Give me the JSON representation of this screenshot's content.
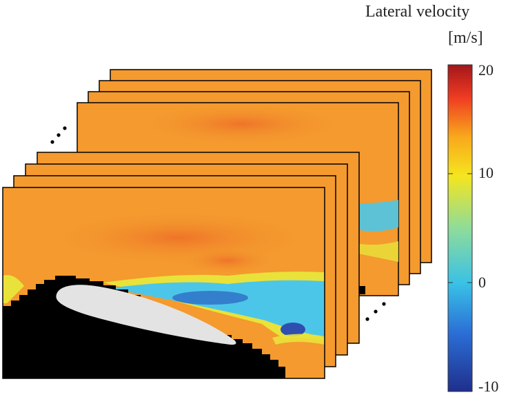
{
  "colorbar": {
    "title": "Lateral velocity",
    "units": "[m/s]",
    "ticks": [
      "20",
      "10",
      "0",
      "-10"
    ],
    "range": [
      -10,
      20
    ],
    "colors": [
      "#1f2f8c",
      "#2b6fd6",
      "#39c1e6",
      "#8fdc9a",
      "#f5e51e",
      "#f8a81c",
      "#ef3b22",
      "#a3161a"
    ]
  },
  "field_colors": {
    "freestream": "#f49a2e",
    "upper_hot": "#f07c2b",
    "wake_cyan": "#4cc6e8",
    "wake_blue": "#2f72c8",
    "wake_yellow": "#e9e23a",
    "mask": "#000000",
    "airfoil": "#e3e3e3"
  },
  "ellipsis_icons": [
    "upper-left",
    "lower-right"
  ]
}
